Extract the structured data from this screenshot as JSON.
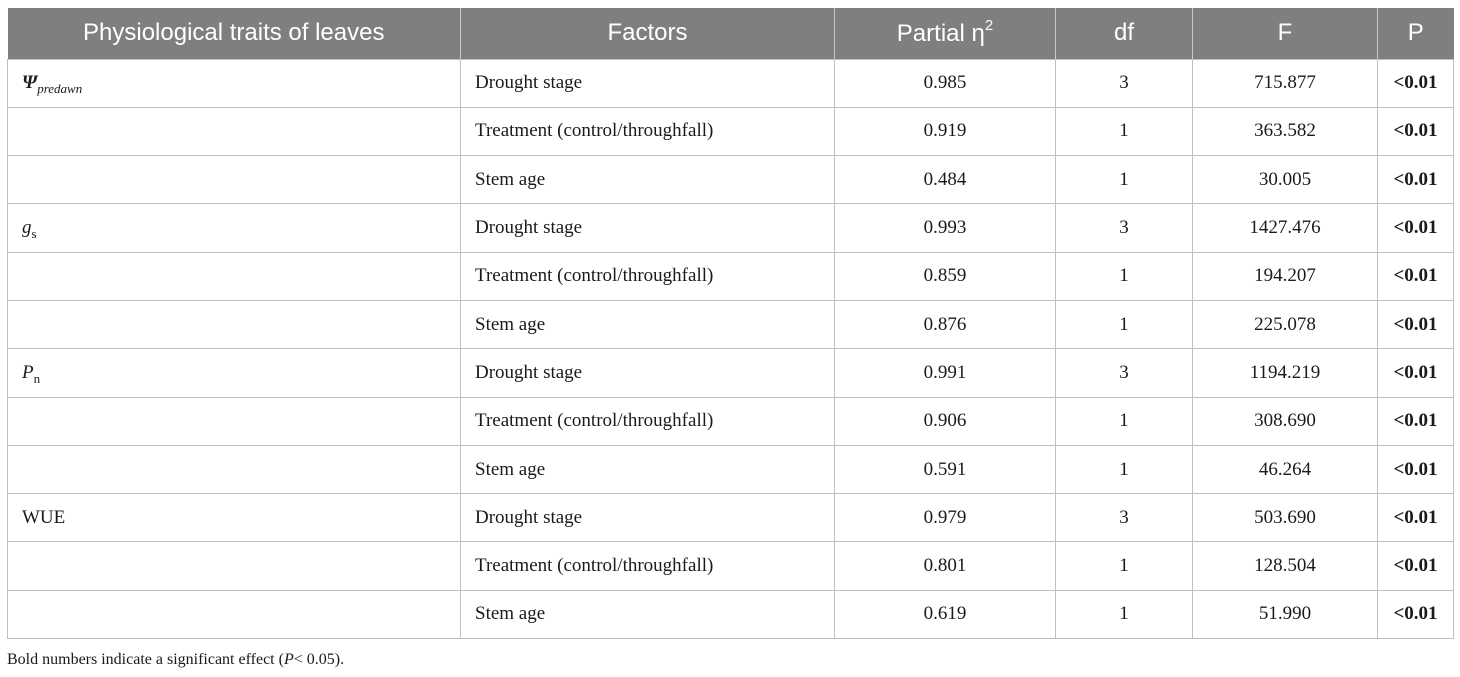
{
  "table": {
    "headers": {
      "trait": "Physiological traits of leaves",
      "factor": "Factors",
      "eta": "Partial η",
      "eta_sup": "2",
      "df": "df",
      "F": "F",
      "P": "P"
    },
    "trait_labels": {
      "psi": {
        "symbol": "Ψ",
        "sub": "predawn"
      },
      "gs": {
        "symbol": "g",
        "sub": "s"
      },
      "pn": {
        "symbol": "P",
        "sub": "n"
      },
      "wue": "WUE"
    },
    "rows": [
      {
        "factor": "Drought stage",
        "eta": "0.985",
        "df": "3",
        "F": "715.877",
        "P": "<0.01"
      },
      {
        "factor": "Treatment (control/throughfall)",
        "eta": "0.919",
        "df": "1",
        "F": "363.582",
        "P": "<0.01"
      },
      {
        "factor": "Stem age",
        "eta": "0.484",
        "df": "1",
        "F": "30.005",
        "P": "<0.01"
      },
      {
        "factor": "Drought stage",
        "eta": "0.993",
        "df": "3",
        "F": "1427.476",
        "P": "<0.01"
      },
      {
        "factor": "Treatment (control/throughfall)",
        "eta": "0.859",
        "df": "1",
        "F": "194.207",
        "P": "<0.01"
      },
      {
        "factor": "Stem age",
        "eta": "0.876",
        "df": "1",
        "F": "225.078",
        "P": "<0.01"
      },
      {
        "factor": "Drought stage",
        "eta": "0.991",
        "df": "3",
        "F": "1194.219",
        "P": "<0.01"
      },
      {
        "factor": "Treatment (control/throughfall)",
        "eta": "0.906",
        "df": "1",
        "F": "308.690",
        "P": "<0.01"
      },
      {
        "factor": "Stem age",
        "eta": "0.591",
        "df": "1",
        "F": "46.264",
        "P": "<0.01"
      },
      {
        "factor": "Drought stage",
        "eta": "0.979",
        "df": "3",
        "F": "503.690",
        "P": "<0.01"
      },
      {
        "factor": "Treatment (control/throughfall)",
        "eta": "0.801",
        "df": "1",
        "F": "128.504",
        "P": "<0.01"
      },
      {
        "factor": "Stem age",
        "eta": "0.619",
        "df": "1",
        "F": "51.990",
        "P": "<0.01"
      }
    ]
  },
  "footnote": {
    "before": "Bold numbers indicate a significant effect (",
    "italic": "P",
    "after": "< 0.05)."
  },
  "colors": {
    "header_bg": "#7f7f7f",
    "header_text": "#ffffff",
    "grid": "#bfbfbf"
  }
}
